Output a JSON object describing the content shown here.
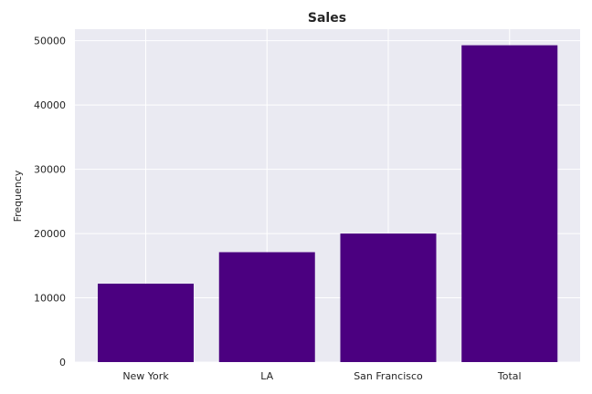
{
  "chart_data": {
    "type": "bar",
    "title": "Sales",
    "xlabel": "",
    "ylabel": "Frequency",
    "categories": [
      "New York",
      "LA",
      "San Francisco",
      "Total"
    ],
    "values": [
      12200,
      17100,
      20000,
      49300
    ],
    "ylim": [
      0,
      51800
    ],
    "yticks": [
      0,
      10000,
      20000,
      30000,
      40000,
      50000
    ],
    "grid": true,
    "bar_color": "#4b0080",
    "plot_background": "#eaeaf2",
    "grid_color": "#ffffff"
  }
}
